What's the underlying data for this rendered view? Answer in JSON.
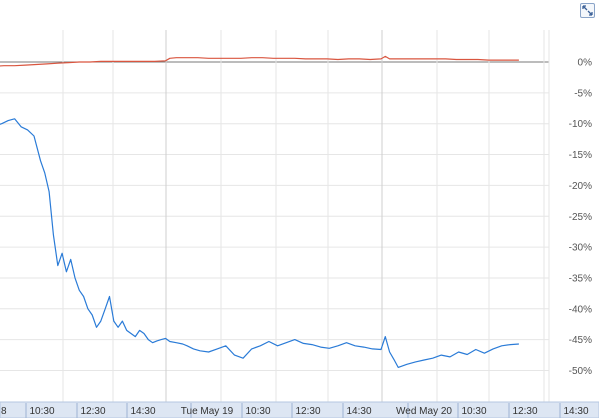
{
  "controls": {
    "expand_icon": "expand-arrows-icon"
  },
  "colors": {
    "series_blue": "#2a7bd7",
    "series_red": "#d9553f",
    "grid": "#e6e6e6",
    "zero_line": "#7a7a7a",
    "time_axis_bg": "#dde6f3",
    "time_axis_border": "#b5c7e0"
  },
  "chart_data": {
    "type": "line",
    "title": "",
    "xlabel": "",
    "ylabel": "",
    "ylim": [
      -52,
      2.5
    ],
    "y_ticks": [
      0,
      -5,
      -10,
      -15,
      -20,
      -25,
      -30,
      -35,
      -40,
      -45,
      -50
    ],
    "y_tick_labels": [
      "0%",
      "-5%",
      "-10%",
      "-15%",
      "-20%",
      "-25%",
      "-30%",
      "-35%",
      "-40%",
      "-45%",
      "-50%"
    ],
    "x_tick_labels": [
      "8",
      "10:30",
      "12:30",
      "14:30",
      "Tue May 19",
      "10:30",
      "12:30",
      "14:30",
      "Wed May 20",
      "10:30",
      "12:30",
      "14:30"
    ],
    "x_domain": [
      0,
      3
    ],
    "day_boundaries": [
      1,
      2
    ],
    "grid": true,
    "series": [
      {
        "color": "#2a7bd7",
        "x": [
          0,
          0.03,
          0.06,
          0.09,
          0.12,
          0.15,
          0.18,
          0.21,
          0.24,
          0.27,
          0.3,
          0.33,
          0.36,
          0.39,
          0.42,
          0.44,
          0.46,
          0.48,
          0.5,
          0.52,
          0.54,
          0.56,
          0.58,
          0.6,
          0.62,
          0.64,
          0.66,
          0.68,
          0.7,
          0.72,
          0.74,
          0.76,
          0.78,
          0.8,
          0.82,
          0.84,
          0.86,
          0.88,
          0.9,
          0.92,
          0.94,
          0.96,
          0.98,
          1.0,
          1.02,
          1.05,
          1.08,
          1.1,
          1.13,
          1.16,
          1.2,
          1.24,
          1.28,
          1.32,
          1.36,
          1.4,
          1.44,
          1.48,
          1.52,
          1.56,
          1.6,
          1.64,
          1.68,
          1.72,
          1.76,
          1.8,
          1.84,
          1.88,
          1.92,
          1.96,
          2.0,
          2.02,
          2.04,
          2.06,
          2.08,
          2.12,
          2.16,
          2.2,
          2.24,
          2.28,
          2.32,
          2.36,
          2.4,
          2.44,
          2.48,
          2.52,
          2.56,
          2.6,
          2.64
        ],
        "y": [
          -8.5,
          -8.8,
          -9,
          -9.2,
          -9.5,
          -10.2,
          -10.5,
          -10.3,
          -10,
          -9.5,
          -9.2,
          -10.5,
          -11,
          -12,
          -16,
          -18,
          -21,
          -28,
          -33,
          -31,
          -34,
          -32,
          -35,
          -37,
          -38,
          -40,
          -41,
          -43,
          -42,
          -40,
          -38,
          -42,
          -43,
          -42,
          -43.5,
          -44,
          -44.5,
          -43.5,
          -44,
          -45,
          -45.5,
          -45.2,
          -45,
          -44.8,
          -45.3,
          -45.5,
          -45.7,
          -46,
          -46.5,
          -46.8,
          -47,
          -46.5,
          -46,
          -47.5,
          -48,
          -46.5,
          -46,
          -45.3,
          -46,
          -45.5,
          -45,
          -45.6,
          -45.8,
          -46.2,
          -46.4,
          -46,
          -45.5,
          -46,
          -46.2,
          -46.5,
          -46.6,
          -44.5,
          -47,
          -48.2,
          -49.5,
          -49,
          -48.6,
          -48.3,
          -48,
          -47.5,
          -47.8,
          -47,
          -47.4,
          -46.6,
          -47.2,
          -46.5,
          -46,
          -45.8,
          -45.7
        ]
      },
      {
        "color": "#d9553f",
        "x": [
          0,
          0.05,
          0.1,
          0.15,
          0.2,
          0.25,
          0.3,
          0.35,
          0.4,
          0.45,
          0.5,
          0.55,
          0.6,
          0.65,
          0.7,
          0.75,
          0.8,
          0.85,
          0.9,
          0.95,
          1.0,
          1.02,
          1.05,
          1.1,
          1.15,
          1.2,
          1.25,
          1.3,
          1.35,
          1.4,
          1.45,
          1.5,
          1.55,
          1.6,
          1.65,
          1.7,
          1.75,
          1.8,
          1.85,
          1.9,
          1.95,
          2.0,
          2.02,
          2.04,
          2.06,
          2.1,
          2.15,
          2.2,
          2.25,
          2.3,
          2.35,
          2.4,
          2.45,
          2.5,
          2.55,
          2.6,
          2.64
        ],
        "y": [
          0.2,
          -0.2,
          -0.4,
          -0.6,
          -0.7,
          -0.6,
          -0.6,
          -0.5,
          -0.4,
          -0.3,
          -0.2,
          -0.1,
          0,
          0,
          0.1,
          0.1,
          0.1,
          0.1,
          0.1,
          0.1,
          0.2,
          0.6,
          0.7,
          0.7,
          0.7,
          0.6,
          0.6,
          0.6,
          0.6,
          0.7,
          0.7,
          0.6,
          0.6,
          0.6,
          0.5,
          0.5,
          0.5,
          0.4,
          0.5,
          0.5,
          0.4,
          0.5,
          0.9,
          0.5,
          0.5,
          0.5,
          0.5,
          0.5,
          0.5,
          0.5,
          0.4,
          0.4,
          0.4,
          0.3,
          0.3,
          0.3,
          0.3
        ]
      }
    ]
  }
}
